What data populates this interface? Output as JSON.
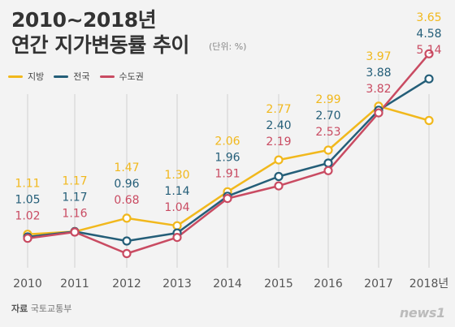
{
  "title_line1": "2010~2018년",
  "title_line2": "연간 지가변동률 추이",
  "unit_label": "(단위: %)",
  "legend": {
    "series_1": "지방",
    "series_2": "전국",
    "series_3": "수도권"
  },
  "footer": {
    "source_prefix": "자료",
    "source_name": "국토교통부"
  },
  "logo": "news1",
  "chart_data": {
    "type": "line",
    "x": [
      "2010",
      "2011",
      "2012",
      "2013",
      "2014",
      "2015",
      "2016",
      "2017",
      "2018년"
    ],
    "series": [
      {
        "name": "지방",
        "color": "#f1b81c",
        "values": [
          1.11,
          1.17,
          1.47,
          1.3,
          2.06,
          2.77,
          2.99,
          3.97,
          3.65
        ],
        "labels": [
          "1.11",
          "1.17",
          "1.47",
          "1.30",
          "2.06",
          "2.77",
          "2.99",
          "3.97",
          "3.65"
        ]
      },
      {
        "name": "전국",
        "color": "#245e78",
        "values": [
          1.05,
          1.17,
          0.96,
          1.14,
          1.96,
          2.4,
          2.7,
          3.88,
          4.58
        ],
        "labels": [
          "1.05",
          "1.17",
          "0.96",
          "1.14",
          "1.96",
          "2.40",
          "2.70",
          "3.88",
          "4.58"
        ]
      },
      {
        "name": "수도권",
        "color": "#c94b62",
        "values": [
          1.02,
          1.16,
          0.68,
          1.04,
          1.91,
          2.19,
          2.53,
          3.82,
          5.14
        ],
        "labels": [
          "1.02",
          "1.16",
          "0.68",
          "1.04",
          "1.91",
          "2.19",
          "2.53",
          "3.82",
          "5.14"
        ]
      }
    ],
    "ylim": [
      0,
      5.5
    ],
    "grid": "vertical",
    "legend_position": "top-left"
  }
}
